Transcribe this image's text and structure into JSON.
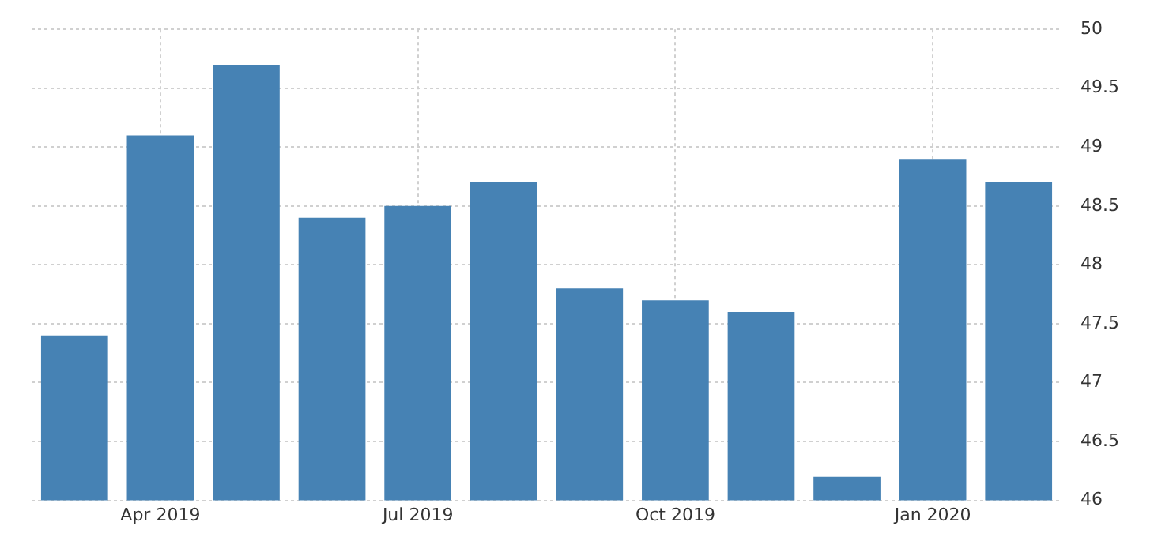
{
  "chart_data": {
    "type": "bar",
    "categories": [
      null,
      "Apr 2019",
      null,
      null,
      "Jul 2019",
      null,
      null,
      "Oct 2019",
      null,
      null,
      "Jan 2020",
      null
    ],
    "values": [
      47.4,
      49.1,
      49.7,
      48.4,
      48.5,
      48.7,
      47.8,
      47.7,
      47.6,
      46.2,
      48.9,
      48.7
    ],
    "color": "#4682b4",
    "ylim": [
      46,
      50
    ],
    "yticks": [
      46,
      46.5,
      47,
      47.5,
      48,
      48.5,
      49,
      49.5,
      50
    ],
    "grid": true
  }
}
